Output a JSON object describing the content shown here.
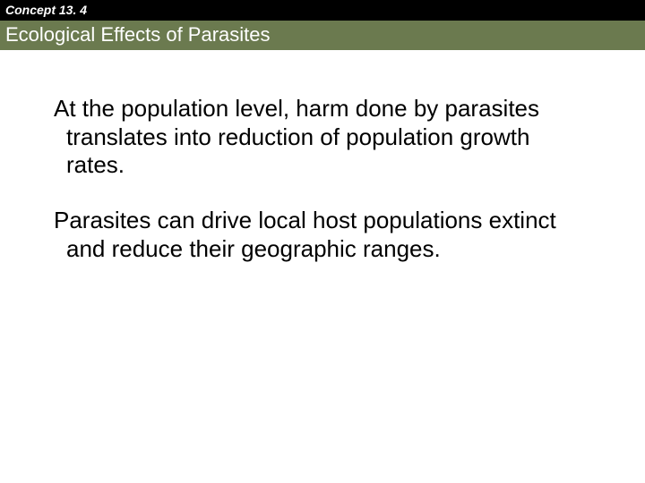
{
  "header": {
    "concept_label": "Concept 13. 4",
    "title": "Ecological Effects of Parasites",
    "concept_bar_bg": "#000000",
    "title_bar_bg": "#6b7a4f",
    "header_text_color": "#ffffff"
  },
  "body": {
    "paragraphs": [
      "At the population level, harm done by parasites translates into reduction of population growth rates.",
      "Parasites can drive local host populations extinct and reduce their geographic ranges."
    ],
    "text_color": "#000000",
    "font_size_pt": 20,
    "background_color": "#ffffff"
  }
}
